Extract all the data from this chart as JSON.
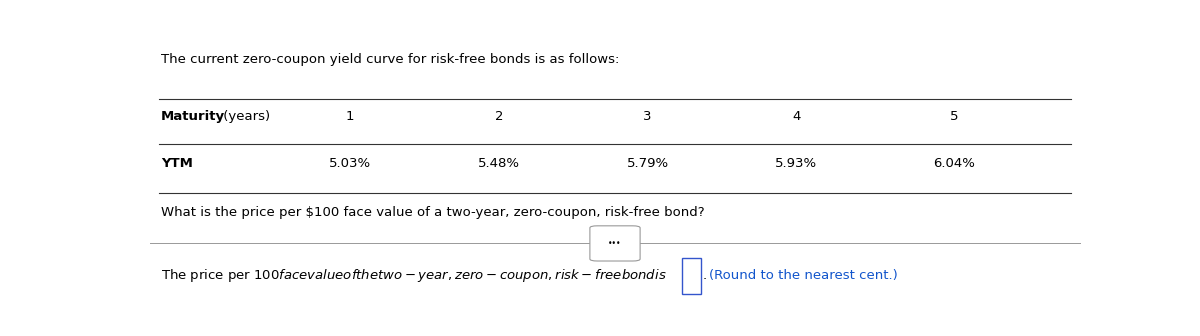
{
  "intro_text": "The current zero-coupon yield curve for risk-free bonds is as follows:",
  "table_header_bold": "Maturity",
  "table_header_normal": " (years)",
  "col_headers": [
    "1",
    "2",
    "3",
    "4",
    "5"
  ],
  "row_label": "YTM",
  "ytm_values": [
    "5.03%",
    "5.48%",
    "5.79%",
    "5.93%",
    "6.04%"
  ],
  "question": "What is the price per $100 face value of a two-year, zero-coupon, risk-free bond?",
  "answer_prefix": "The price per $100 face value of the two-year, zero-coupon, risk-free bond is $",
  "answer_suffix": "(Round to the nearest cent.)",
  "bg_color": "#ffffff",
  "text_color": "#000000",
  "blue_text_color": "#1155cc",
  "separator_color": "#999999",
  "box_color": "#3355cc",
  "line_color": "#333333"
}
